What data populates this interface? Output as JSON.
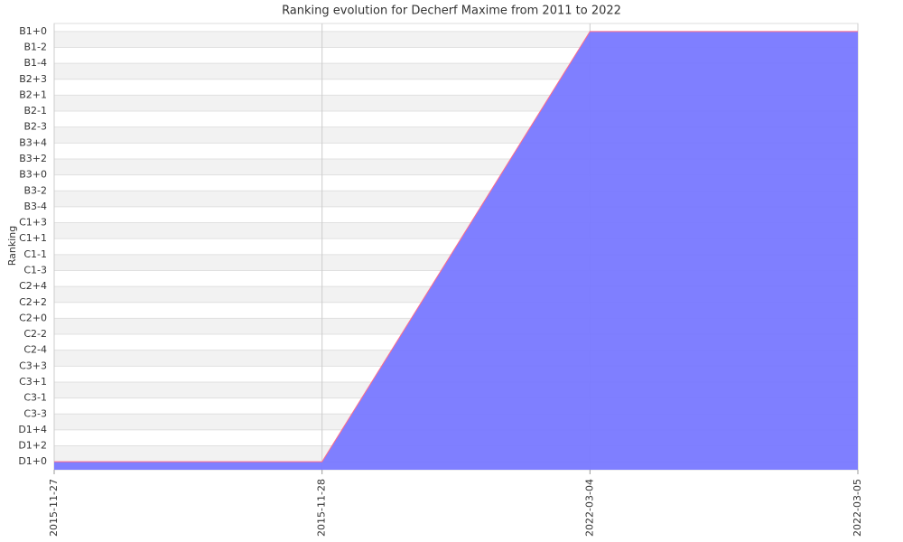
{
  "chart_data": {
    "type": "area",
    "title": "Ranking evolution for Decherf Maxime from 2011 to 2022",
    "y_label": "Ranking",
    "categories": [
      "2015-11-27",
      "2015-11-28",
      "2022-03-04",
      "2022-03-05"
    ],
    "values": [
      0,
      0,
      27,
      27
    ],
    "color": "#7878ff",
    "line_color": "#ff6b8a",
    "ylim": [
      -0.5,
      27.5
    ],
    "yticks": [
      {
        "value": 0,
        "label": "D1+0"
      },
      {
        "value": 1,
        "label": "D1+2"
      },
      {
        "value": 2,
        "label": "D1+4"
      },
      {
        "value": 3,
        "label": "C3-3"
      },
      {
        "value": 4,
        "label": "C3-1"
      },
      {
        "value": 5,
        "label": "C3+1"
      },
      {
        "value": 6,
        "label": "C3+3"
      },
      {
        "value": 7,
        "label": "C2-4"
      },
      {
        "value": 8,
        "label": "C2-2"
      },
      {
        "value": 9,
        "label": "C2+0"
      },
      {
        "value": 10,
        "label": "C2+2"
      },
      {
        "value": 11,
        "label": "C2+4"
      },
      {
        "value": 12,
        "label": "C1-3"
      },
      {
        "value": 13,
        "label": "C1-1"
      },
      {
        "value": 14,
        "label": "C1+1"
      },
      {
        "value": 15,
        "label": "C1+3"
      },
      {
        "value": 16,
        "label": "B3-4"
      },
      {
        "value": 17,
        "label": "B3-2"
      },
      {
        "value": 18,
        "label": "B3+0"
      },
      {
        "value": 19,
        "label": "B3+2"
      },
      {
        "value": 20,
        "label": "B3+4"
      },
      {
        "value": 21,
        "label": "B2-3"
      },
      {
        "value": 22,
        "label": "B2-1"
      },
      {
        "value": 23,
        "label": "B2+1"
      },
      {
        "value": 24,
        "label": "B2+3"
      },
      {
        "value": 25,
        "label": "B1-4"
      },
      {
        "value": 26,
        "label": "B1-2"
      },
      {
        "value": 27,
        "label": "B1+0"
      }
    ],
    "grid": true
  }
}
